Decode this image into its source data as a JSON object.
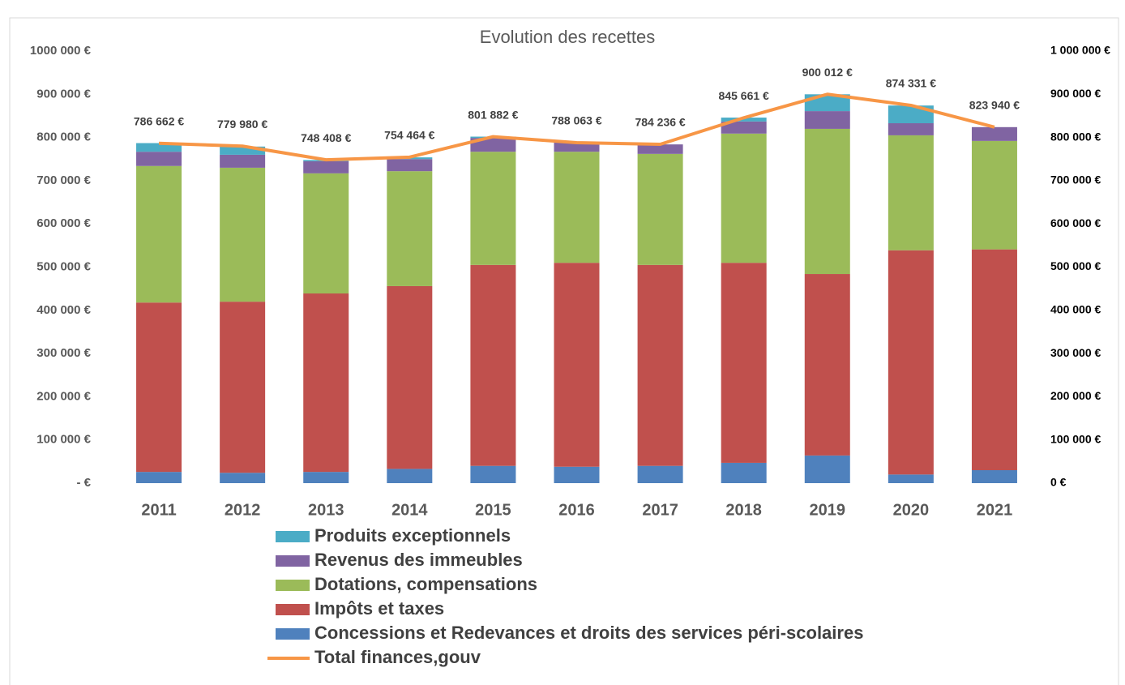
{
  "chart_data": {
    "type": "bar",
    "stacked": true,
    "title": "Evolution des recettes",
    "categories": [
      "2011",
      "2012",
      "2013",
      "2014",
      "2015",
      "2016",
      "2017",
      "2018",
      "2019",
      "2020",
      "2021"
    ],
    "series": [
      {
        "name": "Concessions et Redevances et droits des services péri-scolaires",
        "color": "#4f81bd",
        "type": "bar",
        "values": [
          26000,
          24000,
          26000,
          33000,
          40000,
          38000,
          40000,
          47000,
          64000,
          20000,
          30000
        ]
      },
      {
        "name": "Impôts et taxes",
        "color": "#c0504d",
        "type": "bar",
        "values": [
          392000,
          396000,
          413000,
          423000,
          465000,
          472000,
          465000,
          463000,
          420000,
          519000,
          511000
        ]
      },
      {
        "name": "Dotations, compensations",
        "color": "#9bbb59",
        "type": "bar",
        "values": [
          316000,
          310000,
          278000,
          266000,
          262000,
          257000,
          257000,
          299000,
          336000,
          266000,
          251000
        ]
      },
      {
        "name": "Revenus des immeubles",
        "color": "#8064a2",
        "type": "bar",
        "values": [
          33000,
          30000,
          28000,
          28000,
          32000,
          21000,
          22000,
          28000,
          41000,
          28000,
          32000
        ]
      },
      {
        "name": "Produits exceptionnels",
        "color": "#4bacc6",
        "type": "bar",
        "values": [
          20000,
          19000,
          3000,
          4000,
          3000,
          0,
          0,
          9000,
          39000,
          41000,
          0
        ]
      },
      {
        "name": "Total finances,gouv",
        "color": "#f79646",
        "type": "line",
        "axis": "y2",
        "values": [
          786662,
          779980,
          748408,
          754464,
          801882,
          788063,
          784236,
          845661,
          900012,
          874331,
          823940
        ],
        "value_labels": [
          "786 662 €",
          "779 980 €",
          "748 408 €",
          "754 464 €",
          "801 882 €",
          "788 063 €",
          "784 236 €",
          "845 661 €",
          "900 012 €",
          "874 331 €",
          "823 940 €"
        ]
      }
    ],
    "ylim": [
      0,
      1000000
    ],
    "yticks": [
      {
        "value": 0,
        "label": "-  €"
      },
      {
        "value": 100000,
        "label": "100 000 €"
      },
      {
        "value": 200000,
        "label": "200 000 €"
      },
      {
        "value": 300000,
        "label": "300 000 €"
      },
      {
        "value": 400000,
        "label": "400 000 €"
      },
      {
        "value": 500000,
        "label": "500 000 €"
      },
      {
        "value": 600000,
        "label": "600 000 €"
      },
      {
        "value": 700000,
        "label": "700 000 €"
      },
      {
        "value": 800000,
        "label": "800 000 €"
      },
      {
        "value": 900000,
        "label": "900 000 €"
      },
      {
        "value": 1000000,
        "label": "1000 000 €"
      }
    ],
    "y2lim": [
      0,
      1000000
    ],
    "y2ticks": [
      {
        "value": 0,
        "label": "0 €"
      },
      {
        "value": 100000,
        "label": "100 000 €"
      },
      {
        "value": 200000,
        "label": "200 000 €"
      },
      {
        "value": 300000,
        "label": "300 000 €"
      },
      {
        "value": 400000,
        "label": "400 000 €"
      },
      {
        "value": 500000,
        "label": "500 000 €"
      },
      {
        "value": 600000,
        "label": "600 000 €"
      },
      {
        "value": 700000,
        "label": "700 000 €"
      },
      {
        "value": 800000,
        "label": "800 000 €"
      },
      {
        "value": 900000,
        "label": "900 000 €"
      },
      {
        "value": 1000000,
        "label": "1 000 000 €"
      }
    ],
    "grid": false,
    "legend": "bottom"
  }
}
